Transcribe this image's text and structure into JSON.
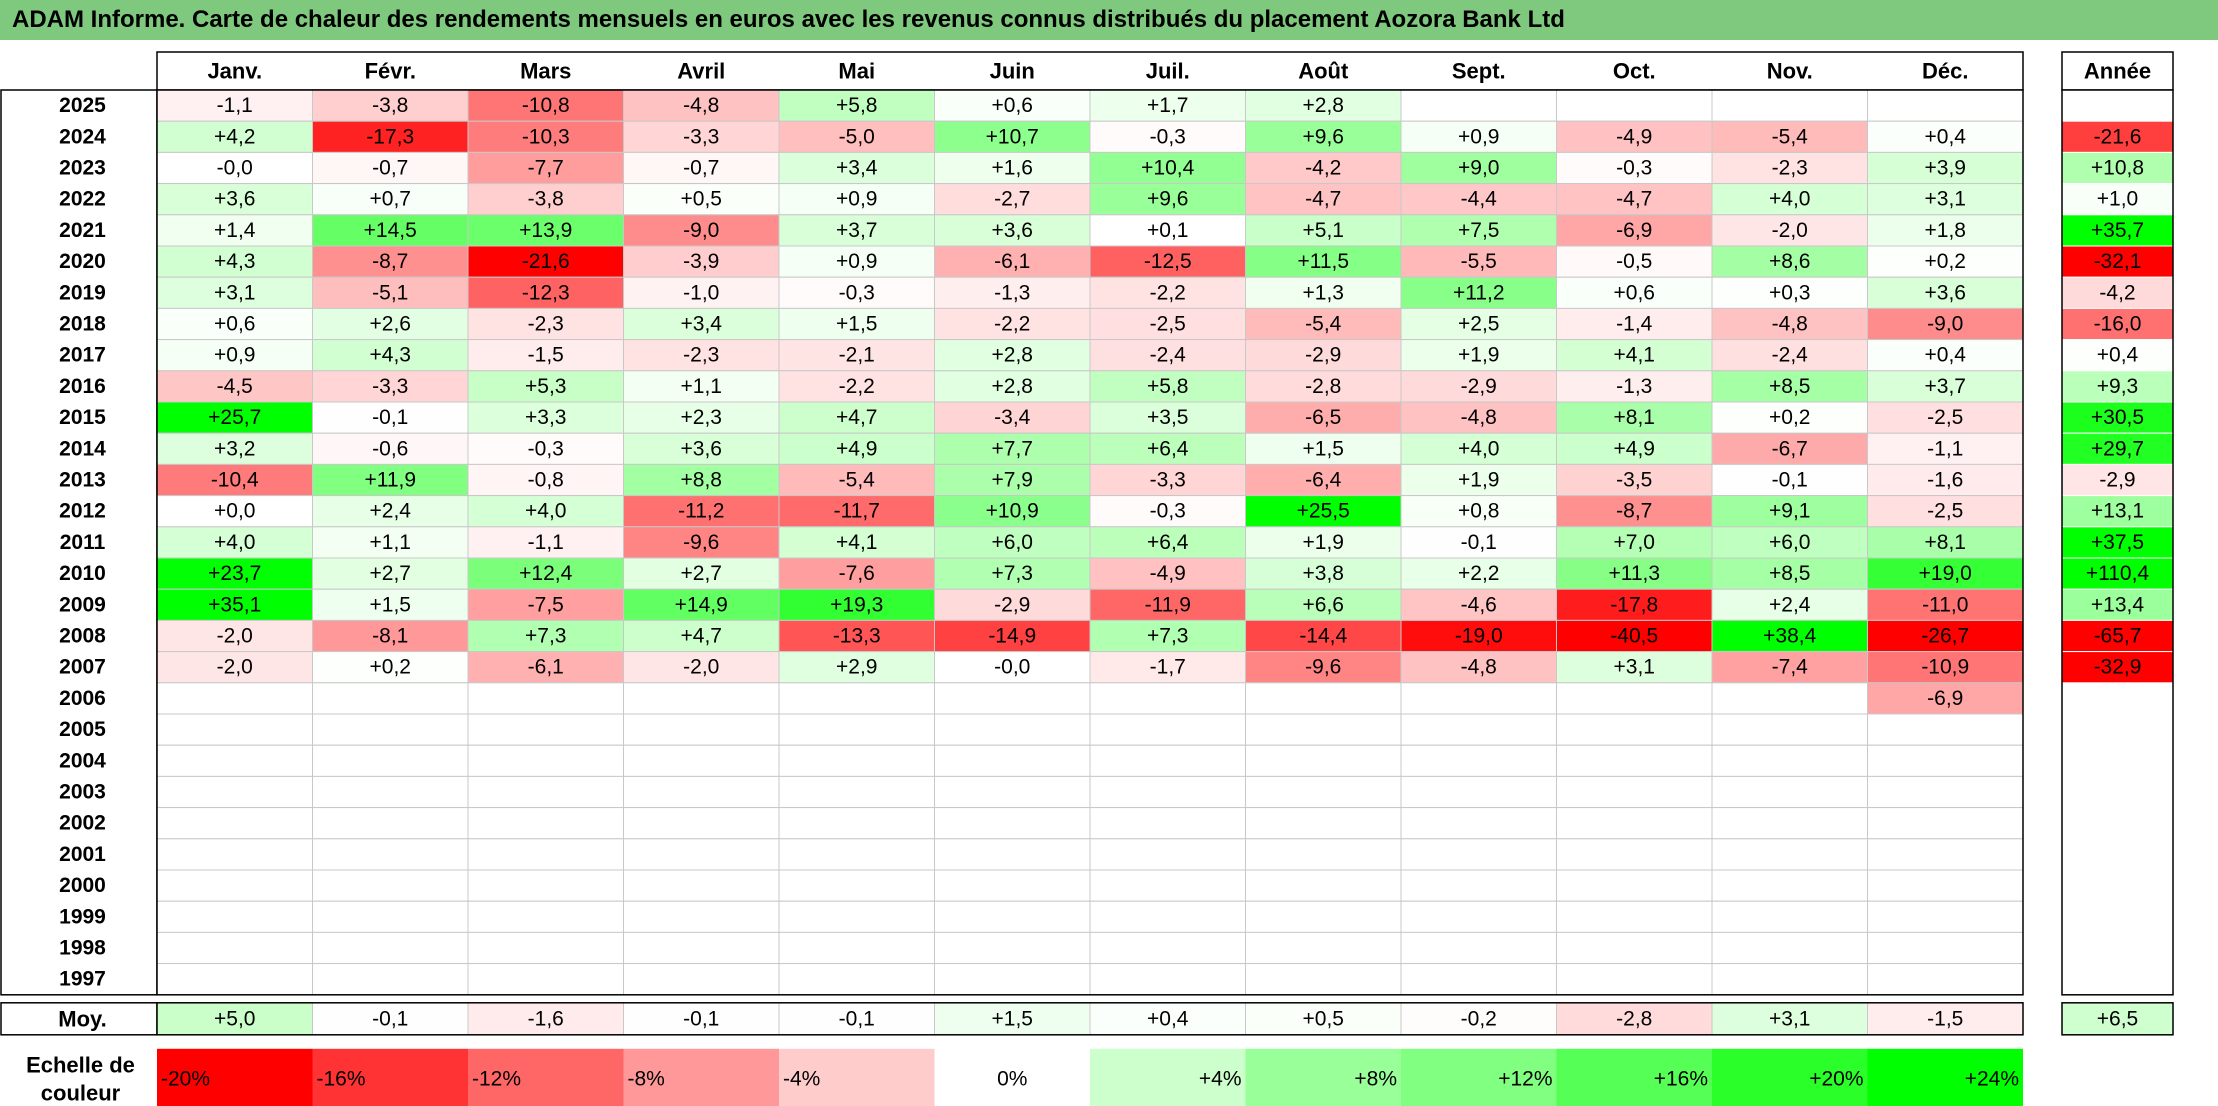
{
  "title": "ADAM Informe. Carte de chaleur des rendements mensuels en euros avec les revenus connus distribués du placement Aozora Bank Ltd",
  "chart_data": {
    "type": "heatmap",
    "columns": [
      "Janv.",
      "Févr.",
      "Mars",
      "Avril",
      "Mai",
      "Juin",
      "Juil.",
      "Août",
      "Sept.",
      "Oct.",
      "Nov.",
      "Déc."
    ],
    "annual_header": "Année",
    "rows": [
      {
        "year": "2025",
        "values": [
          "-1,1",
          "-3,8",
          "-10,8",
          "-4,8",
          "+5,8",
          "+0,6",
          "+1,7",
          "+2,8",
          "",
          "",
          "",
          ""
        ],
        "annual": ""
      },
      {
        "year": "2024",
        "values": [
          "+4,2",
          "-17,3",
          "-10,3",
          "-3,3",
          "-5,0",
          "+10,7",
          "-0,3",
          "+9,6",
          "+0,9",
          "-4,9",
          "-5,4",
          "+0,4"
        ],
        "annual": "-21,6"
      },
      {
        "year": "2023",
        "values": [
          "-0,0",
          "-0,7",
          "-7,7",
          "-0,7",
          "+3,4",
          "+1,6",
          "+10,4",
          "-4,2",
          "+9,0",
          "-0,3",
          "-2,3",
          "+3,9"
        ],
        "annual": "+10,8"
      },
      {
        "year": "2022",
        "values": [
          "+3,6",
          "+0,7",
          "-3,8",
          "+0,5",
          "+0,9",
          "-2,7",
          "+9,6",
          "-4,7",
          "-4,4",
          "-4,7",
          "+4,0",
          "+3,1"
        ],
        "annual": "+1,0"
      },
      {
        "year": "2021",
        "values": [
          "+1,4",
          "+14,5",
          "+13,9",
          "-9,0",
          "+3,7",
          "+3,6",
          "+0,1",
          "+5,1",
          "+7,5",
          "-6,9",
          "-2,0",
          "+1,8"
        ],
        "annual": "+35,7"
      },
      {
        "year": "2020",
        "values": [
          "+4,3",
          "-8,7",
          "-21,6",
          "-3,9",
          "+0,9",
          "-6,1",
          "-12,5",
          "+11,5",
          "-5,5",
          "-0,5",
          "+8,6",
          "+0,2"
        ],
        "annual": "-32,1"
      },
      {
        "year": "2019",
        "values": [
          "+3,1",
          "-5,1",
          "-12,3",
          "-1,0",
          "-0,3",
          "-1,3",
          "-2,2",
          "+1,3",
          "+11,2",
          "+0,6",
          "+0,3",
          "+3,6"
        ],
        "annual": "-4,2"
      },
      {
        "year": "2018",
        "values": [
          "+0,6",
          "+2,6",
          "-2,3",
          "+3,4",
          "+1,5",
          "-2,2",
          "-2,5",
          "-5,4",
          "+2,5",
          "-1,4",
          "-4,8",
          "-9,0"
        ],
        "annual": "-16,0"
      },
      {
        "year": "2017",
        "values": [
          "+0,9",
          "+4,3",
          "-1,5",
          "-2,3",
          "-2,1",
          "+2,8",
          "-2,4",
          "-2,9",
          "+1,9",
          "+4,1",
          "-2,4",
          "+0,4"
        ],
        "annual": "+0,4"
      },
      {
        "year": "2016",
        "values": [
          "-4,5",
          "-3,3",
          "+5,3",
          "+1,1",
          "-2,2",
          "+2,8",
          "+5,8",
          "-2,8",
          "-2,9",
          "-1,3",
          "+8,5",
          "+3,7"
        ],
        "annual": "+9,3"
      },
      {
        "year": "2015",
        "values": [
          "+25,7",
          "-0,1",
          "+3,3",
          "+2,3",
          "+4,7",
          "-3,4",
          "+3,5",
          "-6,5",
          "-4,8",
          "+8,1",
          "+0,2",
          "-2,5"
        ],
        "annual": "+30,5"
      },
      {
        "year": "2014",
        "values": [
          "+3,2",
          "-0,6",
          "-0,3",
          "+3,6",
          "+4,9",
          "+7,7",
          "+6,4",
          "+1,5",
          "+4,0",
          "+4,9",
          "-6,7",
          "-1,1"
        ],
        "annual": "+29,7"
      },
      {
        "year": "2013",
        "values": [
          "-10,4",
          "+11,9",
          "-0,8",
          "+8,8",
          "-5,4",
          "+7,9",
          "-3,3",
          "-6,4",
          "+1,9",
          "-3,5",
          "-0,1",
          "-1,6"
        ],
        "annual": "-2,9"
      },
      {
        "year": "2012",
        "values": [
          "+0,0",
          "+2,4",
          "+4,0",
          "-11,2",
          "-11,7",
          "+10,9",
          "-0,3",
          "+25,5",
          "+0,8",
          "-8,7",
          "+9,1",
          "-2,5"
        ],
        "annual": "+13,1"
      },
      {
        "year": "2011",
        "values": [
          "+4,0",
          "+1,1",
          "-1,1",
          "-9,6",
          "+4,1",
          "+6,0",
          "+6,4",
          "+1,9",
          "-0,1",
          "+7,0",
          "+6,0",
          "+8,1"
        ],
        "annual": "+37,5"
      },
      {
        "year": "2010",
        "values": [
          "+23,7",
          "+2,7",
          "+12,4",
          "+2,7",
          "-7,6",
          "+7,3",
          "-4,9",
          "+3,8",
          "+2,2",
          "+11,3",
          "+8,5",
          "+19,0"
        ],
        "annual": "+110,4"
      },
      {
        "year": "2009",
        "values": [
          "+35,1",
          "+1,5",
          "-7,5",
          "+14,9",
          "+19,3",
          "-2,9",
          "-11,9",
          "+6,6",
          "-4,6",
          "-17,8",
          "+2,4",
          "-11,0"
        ],
        "annual": "+13,4"
      },
      {
        "year": "2008",
        "values": [
          "-2,0",
          "-8,1",
          "+7,3",
          "+4,7",
          "-13,3",
          "-14,9",
          "+7,3",
          "-14,4",
          "-19,0",
          "-40,5",
          "+38,4",
          "-26,7"
        ],
        "annual": "-65,7"
      },
      {
        "year": "2007",
        "values": [
          "-2,0",
          "+0,2",
          "-6,1",
          "-2,0",
          "+2,9",
          "-0,0",
          "-1,7",
          "-9,6",
          "-4,8",
          "+3,1",
          "-7,4",
          "-10,9"
        ],
        "annual": "-32,9"
      },
      {
        "year": "2006",
        "values": [
          "",
          "",
          "",
          "",
          "",
          "",
          "",
          "",
          "",
          "",
          "",
          "-6,9"
        ],
        "annual": ""
      },
      {
        "year": "2005",
        "values": [
          "",
          "",
          "",
          "",
          "",
          "",
          "",
          "",
          "",
          "",
          "",
          ""
        ],
        "annual": ""
      },
      {
        "year": "2004",
        "values": [
          "",
          "",
          "",
          "",
          "",
          "",
          "",
          "",
          "",
          "",
          "",
          ""
        ],
        "annual": ""
      },
      {
        "year": "2003",
        "values": [
          "",
          "",
          "",
          "",
          "",
          "",
          "",
          "",
          "",
          "",
          "",
          ""
        ],
        "annual": ""
      },
      {
        "year": "2002",
        "values": [
          "",
          "",
          "",
          "",
          "",
          "",
          "",
          "",
          "",
          "",
          "",
          ""
        ],
        "annual": ""
      },
      {
        "year": "2001",
        "values": [
          "",
          "",
          "",
          "",
          "",
          "",
          "",
          "",
          "",
          "",
          "",
          ""
        ],
        "annual": ""
      },
      {
        "year": "2000",
        "values": [
          "",
          "",
          "",
          "",
          "",
          "",
          "",
          "",
          "",
          "",
          "",
          ""
        ],
        "annual": ""
      },
      {
        "year": "1999",
        "values": [
          "",
          "",
          "",
          "",
          "",
          "",
          "",
          "",
          "",
          "",
          "",
          ""
        ],
        "annual": ""
      },
      {
        "year": "1998",
        "values": [
          "",
          "",
          "",
          "",
          "",
          "",
          "",
          "",
          "",
          "",
          "",
          ""
        ],
        "annual": ""
      },
      {
        "year": "1997",
        "values": [
          "",
          "",
          "",
          "",
          "",
          "",
          "",
          "",
          "",
          "",
          "",
          ""
        ],
        "annual": ""
      }
    ],
    "average": {
      "label": "Moy.",
      "values": [
        "+5,0",
        "-0,1",
        "-1,6",
        "-0,1",
        "-0,1",
        "+1,5",
        "+0,4",
        "+0,5",
        "-0,2",
        "-2,8",
        "+3,1",
        "-1,5"
      ],
      "annual": "+6,5"
    },
    "color_scale": {
      "label_line1": "Echelle de",
      "label_line2": "couleur",
      "steps": [
        {
          "label": "-20%",
          "value": -20,
          "color": "#ff0000"
        },
        {
          "label": "-16%",
          "value": -16,
          "color": "#ff3333"
        },
        {
          "label": "-12%",
          "value": -12,
          "color": "#ff6666"
        },
        {
          "label": "-8%",
          "value": -8,
          "color": "#ff9999"
        },
        {
          "label": "-4%",
          "value": -4,
          "color": "#ffcccc"
        },
        {
          "label": "0%",
          "value": 0,
          "color": "#ffffff"
        },
        {
          "label": "+4%",
          "value": 4,
          "color": "#ccffcc"
        },
        {
          "label": "+8%",
          "value": 8,
          "color": "#99ff99"
        },
        {
          "label": "+12%",
          "value": 12,
          "color": "#80ff80"
        },
        {
          "label": "+16%",
          "value": 16,
          "color": "#55ff55"
        },
        {
          "label": "+20%",
          "value": 20,
          "color": "#2aff2a"
        },
        {
          "label": "+24%",
          "value": 24,
          "color": "#00ff00"
        }
      ]
    }
  }
}
